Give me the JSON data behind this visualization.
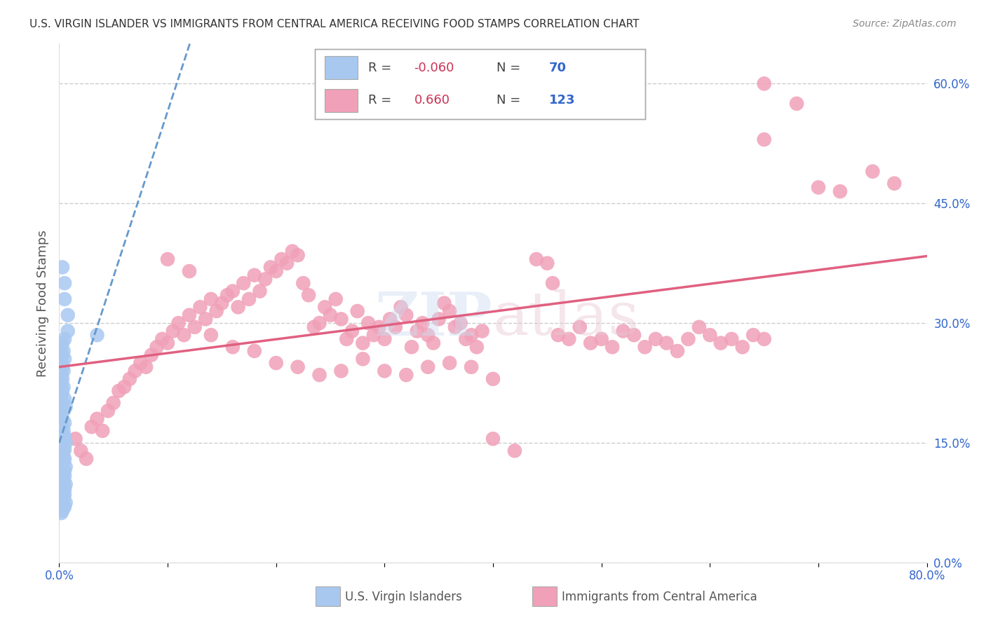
{
  "title": "U.S. VIRGIN ISLANDER VS IMMIGRANTS FROM CENTRAL AMERICA RECEIVING FOOD STAMPS CORRELATION CHART",
  "source": "Source: ZipAtlas.com",
  "ylabel": "Receiving Food Stamps",
  "right_ytick_labels": [
    "0.0%",
    "15.0%",
    "30.0%",
    "45.0%",
    "60.0%"
  ],
  "right_ytick_values": [
    0.0,
    15.0,
    30.0,
    45.0,
    60.0
  ],
  "xmin": 0.0,
  "xmax": 80.0,
  "ymin": 0.0,
  "ymax": 65.0,
  "blue_R": -0.06,
  "blue_N": 70,
  "pink_R": 0.66,
  "pink_N": 123,
  "blue_color": "#a8c8f0",
  "pink_color": "#f0a0b8",
  "blue_line_color": "#6699cc",
  "pink_line_color": "#e06080",
  "legend_label_blue": "U.S. Virgin Islanders",
  "legend_label_pink": "Immigrants from Central America",
  "blue_scatter": [
    [
      0.3,
      37.0
    ],
    [
      0.5,
      35.0
    ],
    [
      0.5,
      33.0
    ],
    [
      0.8,
      31.0
    ],
    [
      0.8,
      29.0
    ],
    [
      0.5,
      28.0
    ],
    [
      0.3,
      27.5
    ],
    [
      0.2,
      27.0
    ],
    [
      0.4,
      26.5
    ],
    [
      0.3,
      26.0
    ],
    [
      0.5,
      25.5
    ],
    [
      0.2,
      25.0
    ],
    [
      0.3,
      24.5
    ],
    [
      0.4,
      24.0
    ],
    [
      0.2,
      23.5
    ],
    [
      0.3,
      23.0
    ],
    [
      0.2,
      22.5
    ],
    [
      0.4,
      22.0
    ],
    [
      0.3,
      21.5
    ],
    [
      0.2,
      21.0
    ],
    [
      0.5,
      20.5
    ],
    [
      0.3,
      20.0
    ],
    [
      0.6,
      19.5
    ],
    [
      0.4,
      19.0
    ],
    [
      0.2,
      18.5
    ],
    [
      0.3,
      18.0
    ],
    [
      0.5,
      17.5
    ],
    [
      0.3,
      17.0
    ],
    [
      0.4,
      16.5
    ],
    [
      0.2,
      16.0
    ],
    [
      0.5,
      15.8
    ],
    [
      0.3,
      15.5
    ],
    [
      0.4,
      15.2
    ],
    [
      0.6,
      15.0
    ],
    [
      0.2,
      14.8
    ],
    [
      0.3,
      14.5
    ],
    [
      0.5,
      14.2
    ],
    [
      0.3,
      14.0
    ],
    [
      0.4,
      13.8
    ],
    [
      0.2,
      13.5
    ],
    [
      0.3,
      13.2
    ],
    [
      0.5,
      13.0
    ],
    [
      0.4,
      12.8
    ],
    [
      0.3,
      12.5
    ],
    [
      0.2,
      12.2
    ],
    [
      0.6,
      12.0
    ],
    [
      0.3,
      11.8
    ],
    [
      0.5,
      11.5
    ],
    [
      0.4,
      11.2
    ],
    [
      0.3,
      11.0
    ],
    [
      0.5,
      10.8
    ],
    [
      0.3,
      10.5
    ],
    [
      0.4,
      10.2
    ],
    [
      0.2,
      10.0
    ],
    [
      0.6,
      9.8
    ],
    [
      0.3,
      9.5
    ],
    [
      0.5,
      9.2
    ],
    [
      0.4,
      9.0
    ],
    [
      3.5,
      28.5
    ],
    [
      0.3,
      8.8
    ],
    [
      0.5,
      8.5
    ],
    [
      0.4,
      8.2
    ],
    [
      0.3,
      8.0
    ],
    [
      0.2,
      7.8
    ],
    [
      0.6,
      7.5
    ],
    [
      0.3,
      7.2
    ],
    [
      0.5,
      7.0
    ],
    [
      0.4,
      6.8
    ],
    [
      0.3,
      6.5
    ],
    [
      0.2,
      6.2
    ]
  ],
  "pink_scatter": [
    [
      1.5,
      15.5
    ],
    [
      2.0,
      14.0
    ],
    [
      2.5,
      13.0
    ],
    [
      3.0,
      17.0
    ],
    [
      3.5,
      18.0
    ],
    [
      4.0,
      16.5
    ],
    [
      4.5,
      19.0
    ],
    [
      5.0,
      20.0
    ],
    [
      5.5,
      21.5
    ],
    [
      6.0,
      22.0
    ],
    [
      6.5,
      23.0
    ],
    [
      7.0,
      24.0
    ],
    [
      7.5,
      25.0
    ],
    [
      8.0,
      24.5
    ],
    [
      8.5,
      26.0
    ],
    [
      9.0,
      27.0
    ],
    [
      9.5,
      28.0
    ],
    [
      10.0,
      27.5
    ],
    [
      10.5,
      29.0
    ],
    [
      11.0,
      30.0
    ],
    [
      11.5,
      28.5
    ],
    [
      12.0,
      31.0
    ],
    [
      12.5,
      29.5
    ],
    [
      13.0,
      32.0
    ],
    [
      13.5,
      30.5
    ],
    [
      14.0,
      33.0
    ],
    [
      14.5,
      31.5
    ],
    [
      15.0,
      32.5
    ],
    [
      15.5,
      33.5
    ],
    [
      16.0,
      34.0
    ],
    [
      16.5,
      32.0
    ],
    [
      17.0,
      35.0
    ],
    [
      17.5,
      33.0
    ],
    [
      18.0,
      36.0
    ],
    [
      18.5,
      34.0
    ],
    [
      19.0,
      35.5
    ],
    [
      19.5,
      37.0
    ],
    [
      20.0,
      36.5
    ],
    [
      20.5,
      38.0
    ],
    [
      21.0,
      37.5
    ],
    [
      21.5,
      39.0
    ],
    [
      22.0,
      38.5
    ],
    [
      22.5,
      35.0
    ],
    [
      23.0,
      33.5
    ],
    [
      23.5,
      29.5
    ],
    [
      24.0,
      30.0
    ],
    [
      24.5,
      32.0
    ],
    [
      25.0,
      31.0
    ],
    [
      25.5,
      33.0
    ],
    [
      26.0,
      30.5
    ],
    [
      26.5,
      28.0
    ],
    [
      27.0,
      29.0
    ],
    [
      27.5,
      31.5
    ],
    [
      28.0,
      27.5
    ],
    [
      28.5,
      30.0
    ],
    [
      29.0,
      28.5
    ],
    [
      29.5,
      29.5
    ],
    [
      30.0,
      28.0
    ],
    [
      30.5,
      30.5
    ],
    [
      31.0,
      29.5
    ],
    [
      31.5,
      32.0
    ],
    [
      32.0,
      31.0
    ],
    [
      32.5,
      27.0
    ],
    [
      33.0,
      29.0
    ],
    [
      33.5,
      30.0
    ],
    [
      34.0,
      28.5
    ],
    [
      34.5,
      27.5
    ],
    [
      35.0,
      30.5
    ],
    [
      35.5,
      32.5
    ],
    [
      36.0,
      31.5
    ],
    [
      36.5,
      29.5
    ],
    [
      37.0,
      30.0
    ],
    [
      37.5,
      28.0
    ],
    [
      38.0,
      28.5
    ],
    [
      38.5,
      27.0
    ],
    [
      39.0,
      29.0
    ],
    [
      40.0,
      15.5
    ],
    [
      42.0,
      14.0
    ],
    [
      44.0,
      38.0
    ],
    [
      45.0,
      37.5
    ],
    [
      45.5,
      35.0
    ],
    [
      46.0,
      28.5
    ],
    [
      47.0,
      28.0
    ],
    [
      48.0,
      29.5
    ],
    [
      49.0,
      27.5
    ],
    [
      50.0,
      28.0
    ],
    [
      51.0,
      27.0
    ],
    [
      52.0,
      29.0
    ],
    [
      53.0,
      28.5
    ],
    [
      54.0,
      27.0
    ],
    [
      55.0,
      28.0
    ],
    [
      56.0,
      27.5
    ],
    [
      57.0,
      26.5
    ],
    [
      58.0,
      28.0
    ],
    [
      59.0,
      29.5
    ],
    [
      60.0,
      28.5
    ],
    [
      61.0,
      27.5
    ],
    [
      62.0,
      28.0
    ],
    [
      63.0,
      27.0
    ],
    [
      64.0,
      28.5
    ],
    [
      65.0,
      28.0
    ],
    [
      10.0,
      38.0
    ],
    [
      12.0,
      36.5
    ],
    [
      14.0,
      28.5
    ],
    [
      16.0,
      27.0
    ],
    [
      18.0,
      26.5
    ],
    [
      20.0,
      25.0
    ],
    [
      22.0,
      24.5
    ],
    [
      24.0,
      23.5
    ],
    [
      26.0,
      24.0
    ],
    [
      28.0,
      25.5
    ],
    [
      30.0,
      24.0
    ],
    [
      32.0,
      23.5
    ],
    [
      34.0,
      24.5
    ],
    [
      36.0,
      25.0
    ],
    [
      38.0,
      24.5
    ],
    [
      40.0,
      23.0
    ],
    [
      65.0,
      60.0
    ],
    [
      68.0,
      57.5
    ],
    [
      70.0,
      47.0
    ],
    [
      72.0,
      46.5
    ],
    [
      75.0,
      49.0
    ],
    [
      77.0,
      47.5
    ],
    [
      65.0,
      53.0
    ]
  ],
  "grid_color": "#cccccc",
  "background_color": "#ffffff",
  "title_color": "#333333"
}
